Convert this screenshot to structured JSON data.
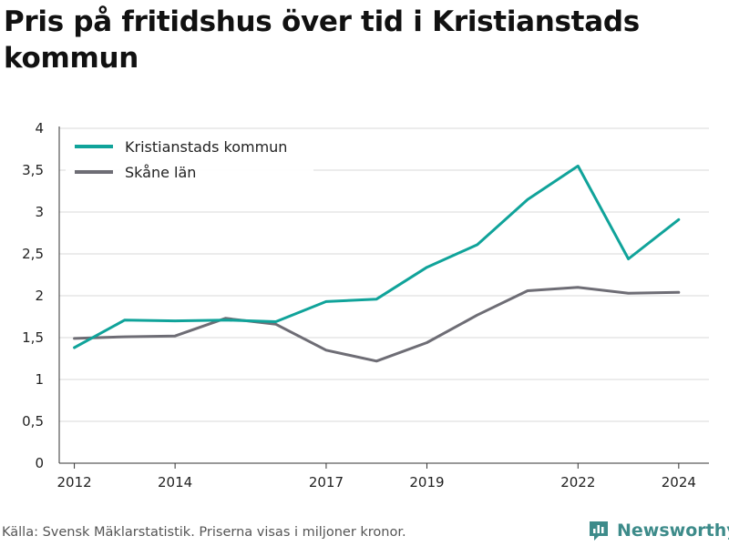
{
  "page": {
    "title": "Pris på fritidshus över tid i Kristianstads kommun",
    "source": "Källa: Svensk Mäklarstatistik. Priserna visas i miljoner kronor.",
    "brand": "Newsworthy"
  },
  "colors": {
    "series_1": "#10a39a",
    "series_2": "#6e6d75",
    "grid": "#d9d9d9",
    "axis": "#333333",
    "brand": "#3d8b8a"
  },
  "chart_data": {
    "type": "line",
    "title": "Pris på fritidshus över tid i Kristianstads kommun",
    "xlabel": "",
    "ylabel": "",
    "x": [
      2012,
      2013,
      2014,
      2015,
      2016,
      2017,
      2018,
      2019,
      2020,
      2021,
      2022,
      2023,
      2024
    ],
    "xlim": [
      2011.7,
      2024.6
    ],
    "ylim": [
      0,
      4
    ],
    "x_ticks": [
      2012,
      2014,
      2017,
      2019,
      2022,
      2024
    ],
    "y_ticks": [
      0,
      0.5,
      1,
      1.5,
      2,
      2.5,
      3,
      3.5,
      4
    ],
    "y_tick_labels": [
      "0",
      "0,5",
      "1",
      "1,5",
      "2",
      "2,5",
      "3",
      "3,5",
      "4"
    ],
    "grid": true,
    "legend_position": "top-left",
    "series": [
      {
        "name": "Kristianstads kommun",
        "values": [
          1.38,
          1.71,
          1.7,
          1.71,
          1.69,
          1.93,
          1.96,
          2.34,
          2.61,
          3.15,
          3.55,
          2.44,
          2.91
        ]
      },
      {
        "name": "Skåne län",
        "values": [
          1.49,
          1.51,
          1.52,
          1.73,
          1.66,
          1.35,
          1.22,
          1.44,
          1.77,
          2.06,
          2.1,
          2.03,
          2.04
        ]
      }
    ]
  }
}
